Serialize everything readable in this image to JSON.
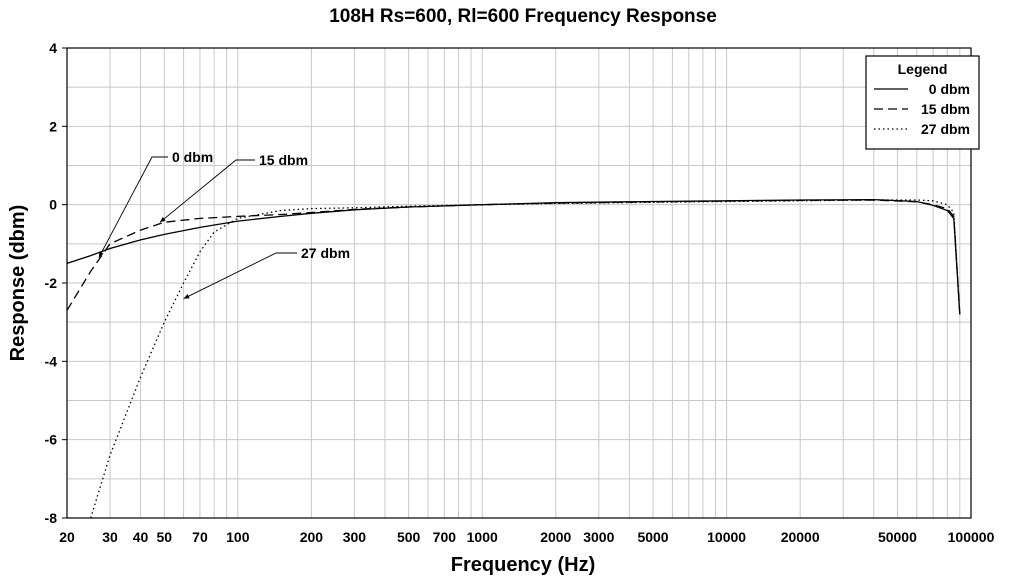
{
  "chart_data": {
    "type": "line",
    "title": "108H Rs=600, Rl=600 Frequency Response",
    "xlabel": "Frequency (Hz)",
    "ylabel": "Response (dbm)",
    "xscale": "log",
    "xlim": [
      20,
      100000
    ],
    "ylim": [
      -8,
      4
    ],
    "grid": true,
    "x_tick_labels": [
      {
        "value": 20,
        "label": "20"
      },
      {
        "value": 30,
        "label": "30"
      },
      {
        "value": 40,
        "label": "40"
      },
      {
        "value": 50,
        "label": "50"
      },
      {
        "value": 70,
        "label": "70"
      },
      {
        "value": 100,
        "label": "100"
      },
      {
        "value": 200,
        "label": "200"
      },
      {
        "value": 300,
        "label": "300"
      },
      {
        "value": 500,
        "label": "500"
      },
      {
        "value": 700,
        "label": "700"
      },
      {
        "value": 1000,
        "label": "1000"
      },
      {
        "value": 2000,
        "label": "2000"
      },
      {
        "value": 3000,
        "label": "3000"
      },
      {
        "value": 5000,
        "label": "5000"
      },
      {
        "value": 10000,
        "label": "10000"
      },
      {
        "value": 20000,
        "label": "20000"
      },
      {
        "value": 50000,
        "label": "50000"
      },
      {
        "value": 100000,
        "label": "100000"
      }
    ],
    "y_tick_labels": [
      {
        "value": 4,
        "label": "4"
      },
      {
        "value": 2,
        "label": "2"
      },
      {
        "value": 0,
        "label": "0"
      },
      {
        "value": -2,
        "label": "-2"
      },
      {
        "value": -4,
        "label": "-4"
      },
      {
        "value": -6,
        "label": "-6"
      },
      {
        "value": -8,
        "label": "-8"
      }
    ],
    "legend": {
      "title": "Legend",
      "position": "top-right",
      "entries": [
        {
          "label": "0 dbm",
          "style": "solid"
        },
        {
          "label": "15 dbm",
          "style": "dashed"
        },
        {
          "label": "27 dbm",
          "style": "dotted"
        }
      ]
    },
    "series": [
      {
        "name": "0 dbm",
        "style": "solid",
        "x": [
          20,
          25,
          30,
          40,
          50,
          70,
          100,
          150,
          200,
          300,
          500,
          1000,
          2000,
          5000,
          10000,
          20000,
          40000,
          60000,
          70000,
          80000,
          85000,
          90000
        ],
        "y": [
          -1.5,
          -1.3,
          -1.12,
          -0.9,
          -0.76,
          -0.58,
          -0.42,
          -0.3,
          -0.22,
          -0.13,
          -0.06,
          0.0,
          0.05,
          0.08,
          0.1,
          0.12,
          0.13,
          0.08,
          -0.02,
          -0.15,
          -0.35,
          -2.8
        ]
      },
      {
        "name": "15 dbm",
        "style": "dashed",
        "x": [
          20,
          25,
          30,
          40,
          50,
          70,
          100,
          150,
          200,
          300,
          500,
          1000,
          2000,
          5000,
          10000,
          20000,
          40000,
          60000,
          70000,
          80000,
          85000,
          90000
        ],
        "y": [
          -2.7,
          -1.7,
          -1.0,
          -0.65,
          -0.45,
          -0.35,
          -0.3,
          -0.25,
          -0.2,
          -0.12,
          -0.06,
          0.0,
          0.04,
          0.07,
          0.09,
          0.11,
          0.12,
          0.07,
          0.0,
          -0.1,
          -0.3,
          -2.8
        ]
      },
      {
        "name": "27 dbm",
        "style": "dotted",
        "x": [
          25,
          30,
          40,
          50,
          60,
          70,
          80,
          100,
          150,
          200,
          300,
          500,
          1000,
          2000,
          5000,
          10000,
          20000,
          40000,
          60000,
          70000,
          80000,
          85000,
          90000
        ],
        "y": [
          -8.0,
          -6.4,
          -4.4,
          -3.0,
          -2.0,
          -1.2,
          -0.7,
          -0.35,
          -0.15,
          -0.1,
          -0.08,
          -0.04,
          0.0,
          0.03,
          0.06,
          0.08,
          0.1,
          0.12,
          0.12,
          0.1,
          0.0,
          -0.2,
          -2.8
        ]
      }
    ],
    "annotations": [
      {
        "text": "0 dbm",
        "points_to": {
          "x": 27,
          "y": -1.35
        }
      },
      {
        "text": "15 dbm",
        "points_to": {
          "x": 48,
          "y": -0.45
        }
      },
      {
        "text": "27 dbm",
        "points_to": {
          "x": 60,
          "y": -2.4
        }
      }
    ]
  }
}
